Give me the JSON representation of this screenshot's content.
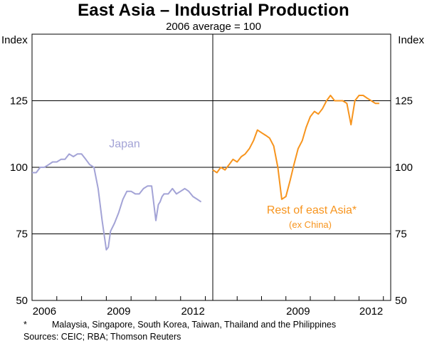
{
  "title": "East Asia – Industrial Production",
  "subtitle": "2006 average = 100",
  "footnote_marker": "*",
  "footnote": "Malaysia, Singapore, South Korea, Taiwan, Thailand and the Philippines",
  "sources": "Sources: CEIC; RBA; Thomson Reuters",
  "chart_data": [
    {
      "type": "line",
      "panel": "left",
      "ylabel": "Index",
      "ylim": [
        50,
        150
      ],
      "yticks": [
        50,
        75,
        100,
        125
      ],
      "xlim": [
        2006.0,
        2013.3
      ],
      "xtick_labels": [
        "2006",
        "2009",
        "2012"
      ],
      "color": "#a3a3d6",
      "label": "Japan",
      "series": [
        {
          "name": "Japan",
          "x": [
            2006.0,
            2006.17,
            2006.33,
            2006.5,
            2006.67,
            2006.83,
            2007.0,
            2007.17,
            2007.33,
            2007.5,
            2007.67,
            2007.83,
            2008.0,
            2008.17,
            2008.33,
            2008.5,
            2008.67,
            2008.83,
            2009.0,
            2009.08,
            2009.17,
            2009.33,
            2009.5,
            2009.67,
            2009.83,
            2010.0,
            2010.17,
            2010.33,
            2010.5,
            2010.67,
            2010.83,
            2011.0,
            2011.1,
            2011.17,
            2011.25,
            2011.33,
            2011.5,
            2011.67,
            2011.83,
            2012.0,
            2012.17,
            2012.33,
            2012.5,
            2012.67,
            2012.83
          ],
          "values": [
            98,
            98,
            100,
            100,
            101,
            102,
            102,
            103,
            103,
            105,
            104,
            105,
            105,
            103,
            101,
            100,
            92,
            80,
            69,
            70,
            76,
            79,
            83,
            88,
            91,
            91,
            90,
            90,
            92,
            93,
            93,
            80,
            86,
            87,
            89,
            90,
            90,
            92,
            90,
            91,
            92,
            91,
            89,
            88,
            87
          ]
        }
      ]
    },
    {
      "type": "line",
      "panel": "right",
      "ylabel": "Index",
      "ylim": [
        50,
        150
      ],
      "yticks": [
        50,
        75,
        100,
        125
      ],
      "xlim": [
        2006.0,
        2013.3
      ],
      "xtick_labels": [
        "2009",
        "2012"
      ],
      "color": "#f7941d",
      "label": "Rest of east Asia*",
      "label_sub": "(ex China)",
      "series": [
        {
          "name": "Rest of east Asia*",
          "x": [
            2006.0,
            2006.17,
            2006.33,
            2006.5,
            2006.67,
            2006.83,
            2007.0,
            2007.17,
            2007.33,
            2007.5,
            2007.67,
            2007.83,
            2008.0,
            2008.17,
            2008.33,
            2008.5,
            2008.67,
            2008.83,
            2009.0,
            2009.17,
            2009.33,
            2009.5,
            2009.67,
            2009.83,
            2010.0,
            2010.17,
            2010.33,
            2010.5,
            2010.67,
            2010.83,
            2011.0,
            2011.17,
            2011.33,
            2011.5,
            2011.67,
            2011.83,
            2012.0,
            2012.17,
            2012.33,
            2012.5,
            2012.67,
            2012.83
          ],
          "values": [
            99,
            98,
            100,
            99,
            101,
            103,
            102,
            104,
            105,
            107,
            110,
            114,
            113,
            112,
            111,
            108,
            100,
            88,
            89,
            95,
            101,
            107,
            110,
            115,
            119,
            121,
            120,
            122,
            125,
            127,
            125,
            125,
            125,
            124,
            116,
            125,
            127,
            127,
            126,
            125,
            124,
            124
          ]
        }
      ]
    }
  ]
}
